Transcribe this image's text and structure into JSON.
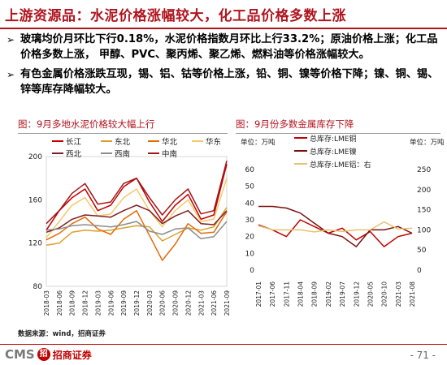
{
  "slide_title": "上游资源品：水泥价格涨幅较大，化工品价格多数上涨",
  "bullets": [
    {
      "marker": "➢",
      "text": "玻璃均价月环比下行0.18%，水泥价格指数月环比上行33.2%；原油价格上涨；化工品价格多数上涨， 甲醇、PVC、聚丙烯、聚乙烯、燃料油等价格涨幅较大。"
    },
    {
      "marker": "➢",
      "text": "有色金属价格涨跌互现，锡、铝、钴等价格上涨，铅、铜、镍等价格下降；镍、铜、锡、锌等库存降幅较大。"
    }
  ],
  "left_panel_title": "图：9月多地水泥价格较大幅上行",
  "right_panel_title": "图：9月份多数金属库存下降",
  "source": "数据来源：wind，招商证券",
  "footer": {
    "logo_text": "CMS",
    "logo_mark": "招",
    "logo_cn": "招商证券",
    "page_number": "- 71 -"
  },
  "colors": {
    "title_red": "#b0141e"
  },
  "chart_data": [
    {
      "type": "line",
      "x": [
        "2018-03",
        "2018-06",
        "2018-09",
        "2018-12",
        "2019-03",
        "2019-06",
        "2019-09",
        "2019-12",
        "2020-03",
        "2020-06",
        "2020-09",
        "2020-12",
        "2021-03",
        "2021-06",
        "2021-09"
      ],
      "xticks": [
        "2018-03",
        "2018-06",
        "2018-09",
        "2018-12",
        "2019-03",
        "2019-06",
        "2019-09",
        "2019-12",
        "2020-03",
        "2020-06",
        "2020-09",
        "2020-12",
        "2021-03",
        "2021-06",
        "2021-09"
      ],
      "yticks": [
        80,
        120,
        160,
        200
      ],
      "ylim": [
        80,
        200
      ],
      "legend_position": "top",
      "series": [
        {
          "name": "长江",
          "color": "#c00000",
          "values": [
            132,
            150,
            162,
            170,
            150,
            155,
            172,
            180,
            158,
            140,
            155,
            165,
            142,
            146,
            193
          ]
        },
        {
          "name": "东北",
          "color": "#d9a030",
          "values": [
            118,
            120,
            130,
            132,
            131,
            132,
            134,
            136,
            135,
            122,
            128,
            134,
            132,
            135,
            153
          ]
        },
        {
          "name": "华北",
          "color": "#e36c09",
          "values": [
            123,
            129,
            138,
            144,
            133,
            128,
            142,
            150,
            127,
            104,
            119,
            138,
            129,
            130,
            149
          ]
        },
        {
          "name": "华东",
          "color": "#f4c96a",
          "values": [
            125,
            140,
            155,
            162,
            145,
            147,
            162,
            170,
            150,
            135,
            150,
            160,
            140,
            142,
            180
          ]
        },
        {
          "name": "西北",
          "color": "#7f1f1f",
          "values": [
            130,
            134,
            142,
            146,
            145,
            144,
            150,
            155,
            150,
            138,
            145,
            150,
            138,
            137,
            150
          ]
        },
        {
          "name": "西南",
          "color": "#8c8c8c",
          "values": [
            132,
            133,
            136,
            137,
            136,
            135,
            137,
            140,
            131,
            128,
            133,
            134,
            124,
            126,
            140
          ]
        },
        {
          "name": "中南",
          "color": "#a31515",
          "values": [
            138,
            150,
            166,
            175,
            156,
            158,
            175,
            180,
            162,
            146,
            160,
            170,
            147,
            150,
            196
          ]
        }
      ]
    },
    {
      "type": "line",
      "x": [
        "2017-01",
        "2017-06",
        "2017-11",
        "2018-04",
        "2018-09",
        "2019-02",
        "2019-07",
        "2019-12",
        "2020-05",
        "2020-10",
        "2021-03",
        "2021-08"
      ],
      "xticks": [
        "2017-01",
        "2017-06",
        "2017-11",
        "2018-04",
        "2018-09",
        "2019-02",
        "2019-07",
        "2019-12",
        "2020-05",
        "2020-10",
        "2021-03",
        "2021-08"
      ],
      "ylabel_left": "单位：万吨",
      "ylabel_right": "单位：万吨",
      "yticks_left": [
        0,
        10,
        20,
        30,
        40,
        50,
        60
      ],
      "ylim_left": [
        0,
        60
      ],
      "yticks_right": [
        0,
        50,
        100,
        150,
        200,
        250
      ],
      "ylim_right": [
        0,
        250
      ],
      "legend_position": "top",
      "series": [
        {
          "name": "总库存:LME铜",
          "axis": "left",
          "color": "#c00000",
          "values": [
            27,
            24,
            20,
            30,
            26,
            22,
            25,
            18,
            23,
            14,
            20,
            22
          ]
        },
        {
          "name": "总库存:LME镍",
          "axis": "left",
          "color": "#7a1010",
          "values": [
            38,
            38,
            37,
            34,
            28,
            22,
            20,
            14,
            24,
            24,
            26,
            22
          ]
        },
        {
          "name": "总库存:LME铝：右",
          "axis": "right",
          "color": "#e6c36e",
          "values": [
            110,
            100,
            100,
            100,
            95,
            100,
            96,
            100,
            100,
            120,
            102,
            104
          ]
        }
      ]
    }
  ]
}
